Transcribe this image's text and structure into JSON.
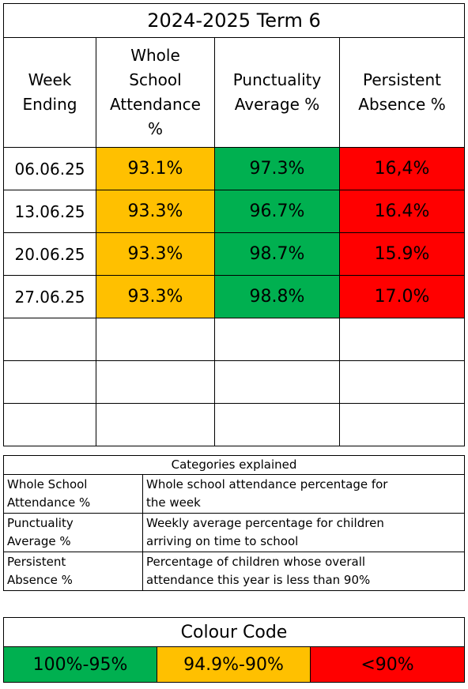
{
  "term_table": {
    "title": "2024-2025 Term 6",
    "headers": {
      "week": "Week\nEnding",
      "attendance": "Whole\nSchool\nAttendance\n%",
      "punctuality": "Punctuality\nAverage %",
      "absence": "Persistent\nAbsence %"
    },
    "rows": [
      {
        "week": "06.06.25",
        "attendance": "93.1%",
        "punctuality": "97.3%",
        "absence": "16,4%"
      },
      {
        "week": "13.06.25",
        "attendance": "93.3%",
        "punctuality": "96.7%",
        "absence": "16.4%"
      },
      {
        "week": "20.06.25",
        "attendance": "93.3%",
        "punctuality": "98.7%",
        "absence": "15.9%"
      },
      {
        "week": "27.06.25",
        "attendance": "93.3%",
        "punctuality": "98.8%",
        "absence": "17.0%"
      }
    ]
  },
  "categories": {
    "title": "Categories explained",
    "items": [
      {
        "term": "Whole School\nAttendance %",
        "definition": "Whole school attendance percentage for\nthe week"
      },
      {
        "term": "Punctuality\nAverage %",
        "definition": "Weekly average percentage for children\narriving on time to school"
      },
      {
        "term": "Persistent\nAbsence %",
        "definition": "Percentage of children whose overall\nattendance this year is less than 90%"
      }
    ]
  },
  "colour_code": {
    "title": "Colour Code",
    "bands": [
      {
        "label": "100%-95%",
        "color": "#00b050"
      },
      {
        "label": "94.9%-90%",
        "color": "#ffc000"
      },
      {
        "label": "<90%",
        "color": "#ff0000"
      }
    ]
  }
}
